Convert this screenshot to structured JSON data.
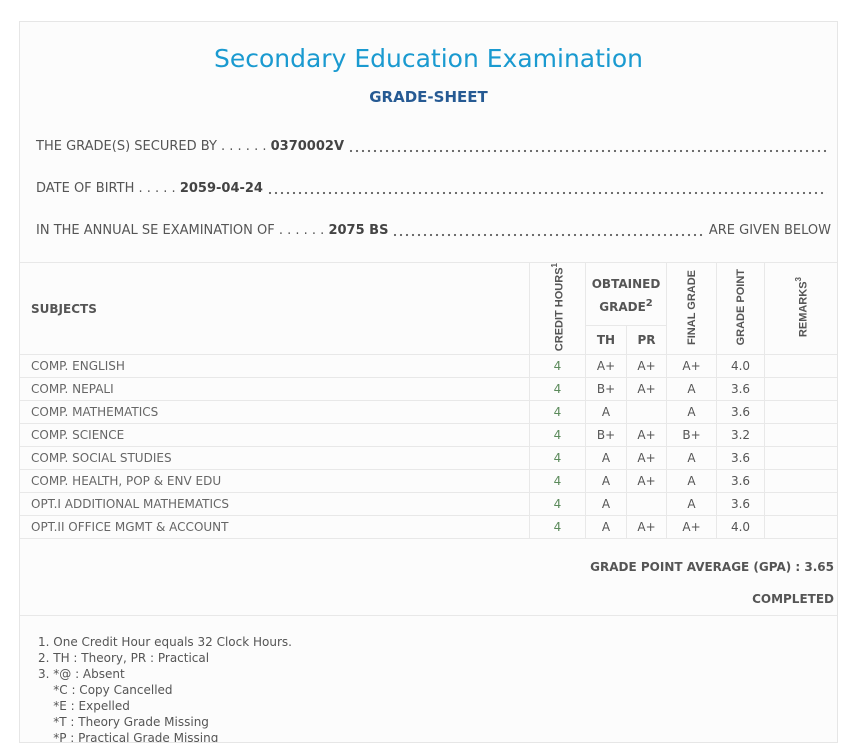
{
  "title": "Secondary Education Examination",
  "subtitle": "GRADE-SHEET",
  "info": {
    "secured_label": "THE GRADE(S) SECURED BY . . . . . .",
    "symbol_no": "0370002V",
    "dob_label": "DATE OF BIRTH . . . . .",
    "dob": "2059-04-24",
    "exam_label": "IN THE ANNUAL SE EXAMINATION OF . . . . . .",
    "exam_year": "2075 BS",
    "exam_suffix": "ARE GIVEN BELOW"
  },
  "headers": {
    "subjects": "SUBJECTS",
    "credit": "CREDIT HOURS",
    "credit_sup": "1",
    "obtained": "OBTAINED GRADE",
    "obtained_sup": "2",
    "th": "TH",
    "pr": "PR",
    "final": "FINAL GRADE",
    "gp": "GRADE POINT",
    "remarks": "REMARKS",
    "remarks_sup": "3"
  },
  "rows": [
    {
      "subject": "COMP. ENGLISH",
      "credit": "4",
      "th": "A+",
      "pr": "A+",
      "final": "A+",
      "gp": "4.0",
      "remarks": ""
    },
    {
      "subject": "COMP. NEPALI",
      "credit": "4",
      "th": "B+",
      "pr": "A+",
      "final": "A",
      "gp": "3.6",
      "remarks": ""
    },
    {
      "subject": "COMP. MATHEMATICS",
      "credit": "4",
      "th": "A",
      "pr": "",
      "final": "A",
      "gp": "3.6",
      "remarks": ""
    },
    {
      "subject": "COMP. SCIENCE",
      "credit": "4",
      "th": "B+",
      "pr": "A+",
      "final": "B+",
      "gp": "3.2",
      "remarks": ""
    },
    {
      "subject": "COMP. SOCIAL STUDIES",
      "credit": "4",
      "th": "A",
      "pr": "A+",
      "final": "A",
      "gp": "3.6",
      "remarks": ""
    },
    {
      "subject": "COMP. HEALTH, POP & ENV EDU",
      "credit": "4",
      "th": "A",
      "pr": "A+",
      "final": "A",
      "gp": "3.6",
      "remarks": ""
    },
    {
      "subject": "OPT.I ADDITIONAL MATHEMATICS",
      "credit": "4",
      "th": "A",
      "pr": "",
      "final": "A",
      "gp": "3.6",
      "remarks": ""
    },
    {
      "subject": "OPT.II OFFICE MGMT & ACCOUNT",
      "credit": "4",
      "th": "A",
      "pr": "A+",
      "final": "A+",
      "gp": "4.0",
      "remarks": ""
    }
  ],
  "gpa": "GRADE POINT AVERAGE (GPA) : 3.65",
  "status": "COMPLETED",
  "notes": [
    "1. One Credit Hour equals 32 Clock Hours.",
    "2. TH : Theory, PR : Practical",
    "3. *@ : Absent",
    "    *C : Copy Cancelled",
    "    *E : Expelled",
    "    *T : Theory Grade Missing",
    "    *P : Practical Grade Missing"
  ]
}
